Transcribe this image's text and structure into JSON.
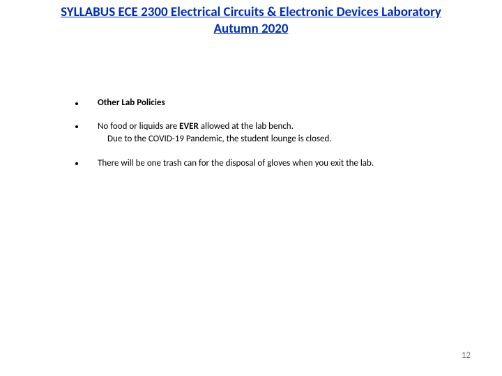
{
  "header": {
    "line1": "SYLLABUS ECE 2300 Electrical Circuits & Electronic Devices Laboratory",
    "line2": "Autumn 2020"
  },
  "policies": {
    "heading": "Other Lab Policies",
    "items": [
      {
        "pre": "No food or liquids are ",
        "emph": "EVER",
        "post": " allowed at the lab bench.",
        "sub": "Due to the COVID-19 Pandemic, the student lounge is closed."
      },
      {
        "text": "There will be one trash can for the disposal of gloves when you exit the lab."
      }
    ]
  },
  "page_number": "12",
  "colors": {
    "title": "#002db3",
    "text": "#000000",
    "page_num": "#777777",
    "background": "#ffffff"
  },
  "typography": {
    "title_fontsize": 19,
    "body_fontsize": 13,
    "title_weight": 700
  }
}
